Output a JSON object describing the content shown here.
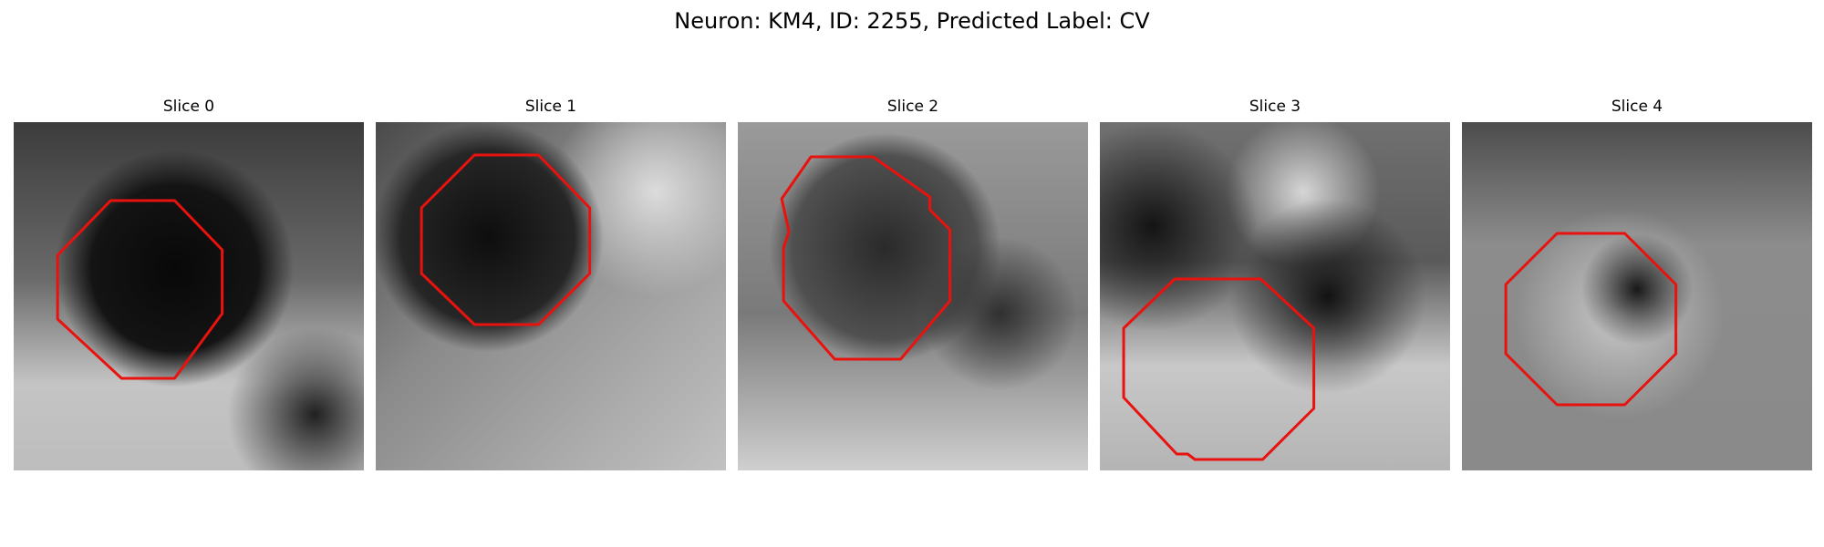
{
  "figure": {
    "title": "Neuron: KM4, ID: 2255, Predicted Label: CV",
    "outline_color": "#e8120e",
    "colormap": "grayscale"
  },
  "panels": [
    {
      "title": "Slice 0"
    },
    {
      "title": "Slice 1"
    },
    {
      "title": "Slice 2"
    },
    {
      "title": "Slice 3"
    },
    {
      "title": "Slice 4"
    }
  ]
}
